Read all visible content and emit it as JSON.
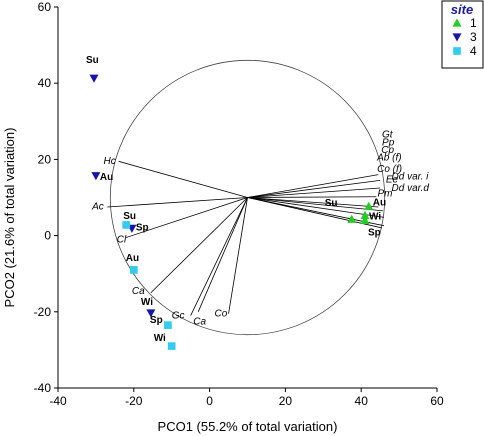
{
  "chart_data": {
    "type": "scatter",
    "xlabel": "PCO1 (55.2% of total variation)",
    "ylabel": "PCO2 (21.6% of total variation)",
    "xlim": [
      -40,
      60
    ],
    "ylim": [
      -40,
      60
    ],
    "xticks": [
      -40,
      -20,
      0,
      20,
      40,
      60
    ],
    "yticks": [
      -40,
      -20,
      0,
      20,
      40,
      60
    ],
    "grid": false,
    "legend": {
      "title": "site",
      "placement": "top-right",
      "entries": [
        {
          "name": "1",
          "marker": "triangle-up",
          "color": "#22cc22"
        },
        {
          "name": "3",
          "marker": "triangle-down",
          "color": "#1515aa"
        },
        {
          "name": "4",
          "marker": "square",
          "color": "#33ccee"
        }
      ]
    },
    "circle": {
      "center": [
        10,
        10
      ],
      "radius": 36.2
    },
    "vectors": [
      {
        "label": "Gt",
        "end": [
          44.5,
          16
        ]
      },
      {
        "label": "Pp",
        "end": [
          45,
          14.5
        ]
      },
      {
        "label": "Cp",
        "end": [
          45,
          12.5
        ]
      },
      {
        "label": "Ab (f)",
        "end": [
          44,
          10.2
        ]
      },
      {
        "label": "Co (f)",
        "end": [
          44.5,
          7.5
        ]
      },
      {
        "label": "Ee",
        "end": [
          45.7,
          6.5
        ]
      },
      {
        "label": "Dd var. i",
        "end": [
          46,
          4.8
        ]
      },
      {
        "label": "Dd var.d",
        "end": [
          46,
          2.6
        ]
      },
      {
        "label": "Pm",
        "end": [
          45.5,
          2
        ]
      },
      {
        "label": "Hc",
        "end": [
          -24,
          19.5
        ]
      },
      {
        "label": "Ac",
        "end": [
          -27,
          7.5
        ]
      },
      {
        "label": "Cl",
        "end": [
          -22,
          -0.5
        ]
      },
      {
        "label": "Ca",
        "end": [
          -15.5,
          -15
        ]
      },
      {
        "label": "Gc",
        "end": [
          -5,
          -21
        ]
      },
      {
        "label": "Ca",
        "end": [
          -3,
          -20
        ]
      },
      {
        "label": "Co",
        "end": [
          5,
          -20.5
        ]
      }
    ],
    "vector_label_positions": [
      {
        "label": "Gt",
        "at": [
          45.5,
          26.5
        ]
      },
      {
        "label": "Pp",
        "at": [
          45.5,
          24.5
        ]
      },
      {
        "label": "Cp",
        "at": [
          45.3,
          22.5
        ]
      },
      {
        "label": "Ab (f)",
        "at": [
          44.2,
          20.5
        ]
      },
      {
        "label": "Co (f)",
        "at": [
          44.2,
          17.5
        ]
      },
      {
        "label": "Ee",
        "at": [
          46.5,
          14.7
        ]
      },
      {
        "label": "Dd var. i",
        "at": [
          48,
          15.5
        ]
      },
      {
        "label": "Dd var.d",
        "at": [
          48,
          12.5
        ]
      },
      {
        "label": "Pm",
        "at": [
          44.3,
          11
        ]
      },
      {
        "label": "Hc",
        "at": [
          -28,
          19.6
        ]
      },
      {
        "label": "Ac",
        "at": [
          -31,
          7.6
        ]
      },
      {
        "label": "Cl",
        "at": [
          -24.5,
          -1
        ]
      },
      {
        "label": "Ca",
        "at": [
          -20.5,
          -14.5
        ]
      },
      {
        "label": "Gc",
        "at": [
          -10,
          -21
        ]
      },
      {
        "label": "Ca",
        "at": [
          -4.3,
          -22.5
        ]
      },
      {
        "label": "Co",
        "at": [
          1.3,
          -20.5
        ]
      }
    ],
    "series": [
      {
        "name": "1",
        "points": [
          {
            "label": "Su",
            "x": 37.5,
            "y": 4.3
          },
          {
            "label": "Au",
            "x": 42,
            "y": 7.7
          },
          {
            "label": "Wi",
            "x": 41,
            "y": 5.3
          },
          {
            "label": "Sp",
            "x": 41,
            "y": 4
          }
        ]
      },
      {
        "name": "3",
        "points": [
          {
            "label": "Su",
            "x": -30.5,
            "y": 41.3
          },
          {
            "label": "Au",
            "x": -30,
            "y": 15.7
          },
          {
            "label": "Sp",
            "x": -20.5,
            "y": 1.9
          },
          {
            "label": "Wi",
            "x": -15.5,
            "y": -20.3
          }
        ]
      },
      {
        "name": "4",
        "points": [
          {
            "label": "Su",
            "x": -22,
            "y": 2.8
          },
          {
            "label": "Au",
            "x": -20,
            "y": -9
          },
          {
            "label": "Sp",
            "x": -11,
            "y": -23.5
          },
          {
            "label": "Wi",
            "x": -10,
            "y": -29
          }
        ]
      }
    ]
  }
}
